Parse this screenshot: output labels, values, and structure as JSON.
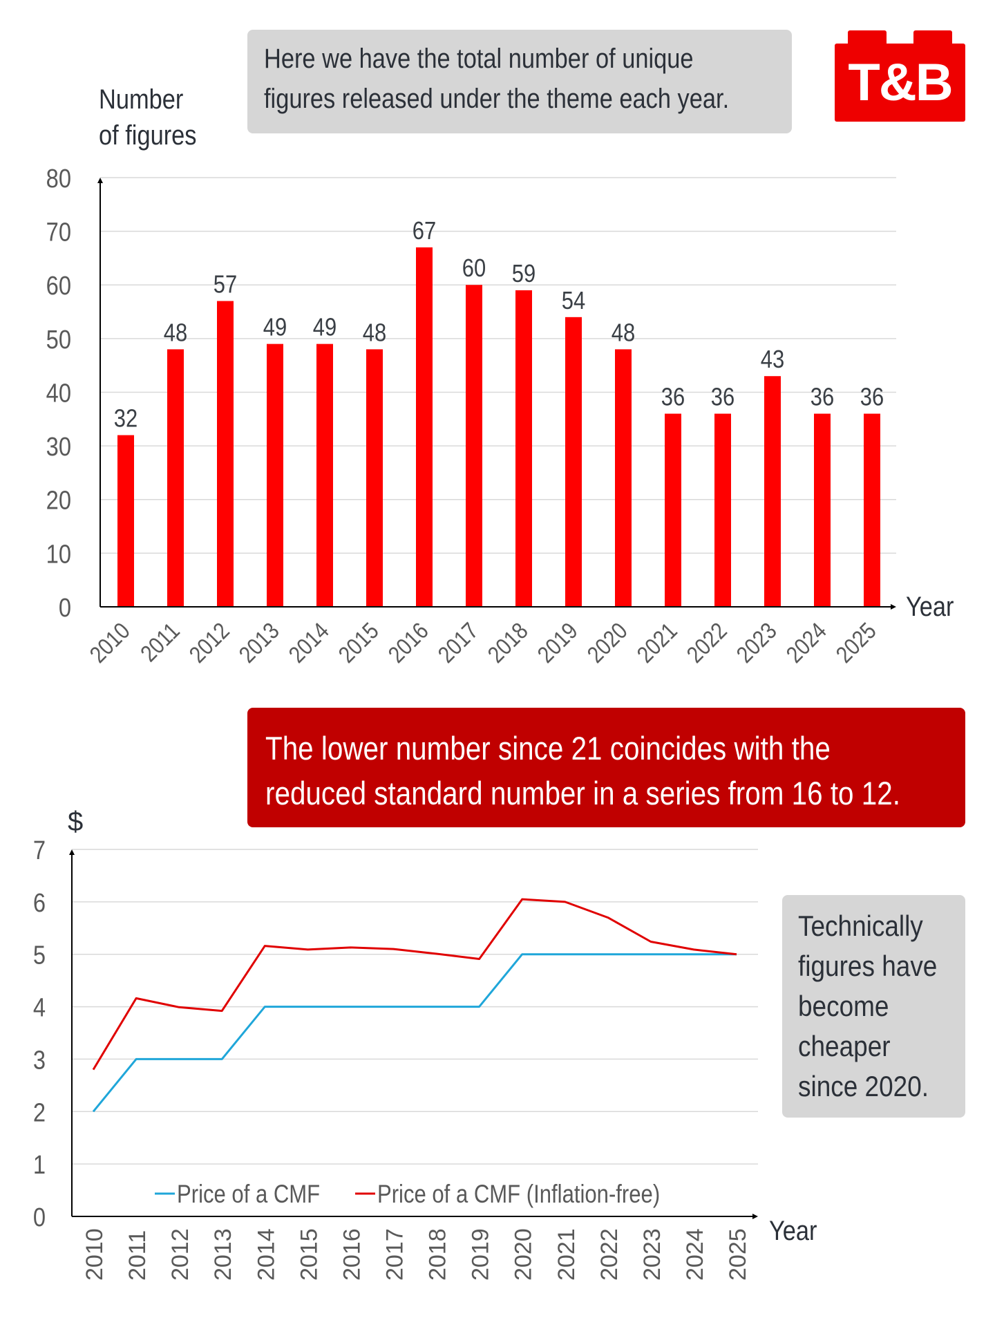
{
  "logo": {
    "text": "T&B",
    "color": "#ee0000"
  },
  "notes": {
    "top": [
      "Here we have the total number of unique",
      "figures released under the theme each year."
    ],
    "middle": [
      "The lower number since 21 coincides with the",
      "reduced standard number in a series from 16 to 12."
    ],
    "side": [
      "Technically",
      "figures have",
      "become",
      "cheaper",
      "since 2020."
    ]
  },
  "colors": {
    "bar": "#ff0000",
    "callout_red": "#c00000",
    "callout_gray": "#d6d6d6",
    "line_price": "#1fa6d9",
    "line_inflation_free": "#e00000",
    "gridline": "#d9d9d9",
    "tick_text": "#595959",
    "title_text": "#2b3038"
  },
  "chart_data": [
    {
      "type": "bar",
      "title": "",
      "ylabel": [
        "Number",
        "of figures"
      ],
      "xlabel": "Year",
      "categories": [
        "2010",
        "2011",
        "2012",
        "2013",
        "2014",
        "2015",
        "2016",
        "2017",
        "2018",
        "2019",
        "2020",
        "2021",
        "2022",
        "2023",
        "2024",
        "2025"
      ],
      "values": [
        32,
        48,
        57,
        49,
        49,
        48,
        67,
        60,
        59,
        54,
        48,
        36,
        36,
        43,
        36,
        36
      ],
      "data_labels": [
        "32",
        "48",
        "57",
        "49",
        "49",
        "48",
        "67",
        "60",
        "59",
        "54",
        "48",
        "36",
        "36",
        "43",
        "36",
        "36"
      ],
      "ylim": [
        0,
        80
      ],
      "yticks": [
        "0",
        "10",
        "20",
        "30",
        "40",
        "50",
        "60",
        "70",
        "80"
      ],
      "ytick_values": [
        0,
        10,
        20,
        30,
        40,
        50,
        60,
        70,
        80
      ],
      "grid": true,
      "x_tick_rotation_deg": -45
    },
    {
      "type": "line",
      "title": "",
      "ylabel": "$",
      "xlabel": "Year",
      "x": [
        "2010",
        "2011",
        "2012",
        "2013",
        "2014",
        "2015",
        "2016",
        "2017",
        "2018",
        "2019",
        "2020",
        "2021",
        "2022",
        "2023",
        "2024",
        "2025"
      ],
      "series": [
        {
          "name": "Price of a CMF",
          "color": "#1fa6d9",
          "values": [
            2,
            3,
            3,
            3,
            4,
            4,
            4,
            4,
            4,
            4,
            5,
            5,
            5,
            5,
            5,
            5
          ]
        },
        {
          "name": "Price of a CMF (Inflation-free)",
          "color": "#e00000",
          "values": [
            2.8,
            4.16,
            3.99,
            3.92,
            5.16,
            5.09,
            5.13,
            5.1,
            5.01,
            4.91,
            6.05,
            6.0,
            5.7,
            5.24,
            5.09,
            5.0
          ]
        }
      ],
      "ylim": [
        0,
        7
      ],
      "yticks": [
        "0",
        "1",
        "2",
        "3",
        "4",
        "5",
        "6",
        "7"
      ],
      "ytick_values": [
        0,
        1,
        2,
        3,
        4,
        5,
        6,
        7
      ],
      "grid": true,
      "legend": "bottom-center-inside",
      "x_tick_rotation_deg": -90
    }
  ]
}
